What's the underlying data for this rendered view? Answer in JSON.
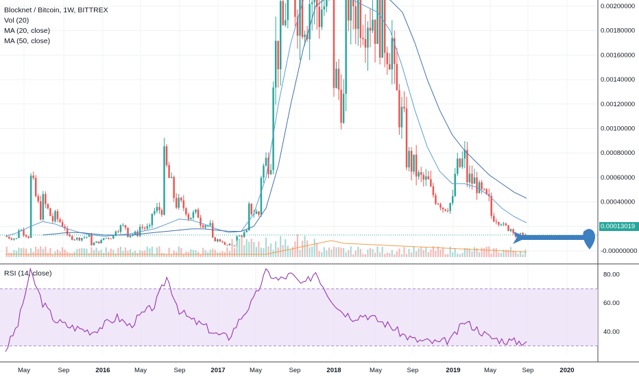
{
  "legend": {
    "symbol": "Blocknet / Bitcoin, 1W, BITTREX",
    "vol": "Vol (20)",
    "ma20": "MA (20, close)",
    "ma50": "MA (50, close)"
  },
  "rsi_legend": "RSI (14, close)",
  "last_price_label": "0.00013019",
  "colors": {
    "up": "#26a69a",
    "down": "#ef5350",
    "ma20": "#5b9cd6",
    "ma50": "#3f6fa8",
    "vol_ma": "#f39c4a",
    "rsi": "#8e24aa",
    "rsi_band": "#e9ddf7",
    "arrow": "#3d7fc0"
  },
  "chart_data": [
    {
      "type": "candlestick",
      "title": "Blocknet / Bitcoin, 1W, BITTREX",
      "y_ticks": [
        "0.00200000",
        "0.00180000",
        "0.00160000",
        "0.00140000",
        "0.00120000",
        "0.00100000",
        "0.00080000",
        "0.00060000",
        "0.00040000",
        "0.00020000",
        "-0.00000000"
      ],
      "y_tick_values": [
        0.002,
        0.0018,
        0.0016,
        0.0014,
        0.0012,
        0.001,
        0.0008,
        0.0006,
        0.0004,
        0.0002,
        0
      ],
      "ylim": [
        -5e-05,
        0.00205
      ],
      "last_price": 0.00013019,
      "x_ticks": [
        "May",
        "Sep",
        "2016",
        "May",
        "Sep",
        "2017",
        "May",
        "Sep",
        "2018",
        "May",
        "Sep",
        "2019",
        "May",
        "Sep",
        "2020"
      ],
      "x_ticks_bold": [
        false,
        false,
        true,
        false,
        false,
        true,
        false,
        false,
        true,
        false,
        false,
        true,
        false,
        false,
        true
      ],
      "close_path": [
        [
          0.00012,
          0.0001
        ],
        [
          0.0002,
          0.00012
        ],
        [
          0.00065,
          0.0003
        ],
        [
          0.00045,
          0.00025
        ],
        [
          0.0003,
          0.0002
        ],
        [
          0.00012,
          0.0001
        ],
        [
          0.0001,
          0.00012
        ],
        [
          5e-05,
          8e-05
        ],
        [
          0.0001,
          0.00012
        ],
        [
          0.00018,
          0.0002
        ],
        [
          0.00013,
          0.00014
        ],
        [
          0.0002,
          0.00018
        ],
        [
          0.0003,
          0.00035
        ],
        [
          0.0008,
          0.00045
        ],
        [
          0.0004,
          0.00035
        ],
        [
          0.00028,
          0.0003
        ],
        [
          0.00025,
          0.0002
        ],
        [
          0.0001,
          8e-05
        ],
        [
          4e-05,
          5e-05
        ],
        [
          0.0001,
          0.00015
        ],
        [
          0.00035,
          0.0003
        ],
        [
          0.0006,
          0.0008
        ],
        [
          0.0015,
          0.0018
        ],
        [
          0.002,
          0.0021
        ],
        [
          0.0021,
          0.002
        ],
        [
          0.0021,
          0.002
        ],
        [
          0.002,
          0.002
        ],
        [
          0.0015,
          0.0012
        ],
        [
          0.0021,
          0.00205
        ],
        [
          0.00205,
          0.002
        ],
        [
          0.002,
          0.0019
        ],
        [
          0.00185,
          0.0017
        ],
        [
          0.0014,
          0.001
        ],
        [
          0.0008,
          0.00065
        ],
        [
          0.0006,
          0.00055
        ],
        [
          0.0005,
          0.0004
        ],
        [
          0.00035,
          0.0004
        ],
        [
          0.0006,
          0.00075
        ],
        [
          0.0006,
          0.00055
        ],
        [
          0.0005,
          0.0004
        ],
        [
          0.0003,
          0.00025
        ],
        [
          0.0002,
          0.00018
        ],
        [
          0.00012,
          0.00013
        ]
      ],
      "ma20_path": [
        0.00012,
        0.00015,
        0.0002,
        0.00024,
        0.00022,
        0.00018,
        0.00015,
        0.00013,
        0.00012,
        0.00013,
        0.00014,
        0.00016,
        0.00018,
        0.00022,
        0.00026,
        0.00025,
        0.00022,
        0.00018,
        0.00015,
        0.00016,
        0.0003,
        0.0006,
        0.0012,
        0.0017,
        0.00205,
        0.00215,
        0.00215,
        0.0021,
        0.00205,
        0.002,
        0.00195,
        0.0018,
        0.0015,
        0.00115,
        0.00085,
        0.00065,
        0.00055,
        0.00055,
        0.00052,
        0.00045,
        0.00035,
        0.00028,
        0.00023
      ],
      "ma50_path": [
        null,
        null,
        null,
        0.00013,
        0.00014,
        0.00015,
        0.00015,
        0.00014,
        0.00013,
        0.00013,
        0.00013,
        0.00014,
        0.00015,
        0.00016,
        0.00017,
        0.00018,
        0.00018,
        0.00017,
        0.00016,
        0.00016,
        0.0002,
        0.00035,
        0.0007,
        0.0012,
        0.00165,
        0.002,
        0.00215,
        0.0022,
        0.0022,
        0.00215,
        0.0021,
        0.00205,
        0.00195,
        0.0017,
        0.0014,
        0.00115,
        0.00095,
        0.00082,
        0.00072,
        0.00062,
        0.00055,
        0.00048,
        0.00043
      ]
    },
    {
      "type": "line",
      "title": "RSI (14, close)",
      "y_ticks": [
        "80.00",
        "60.00",
        "40.00"
      ],
      "y_tick_values": [
        80,
        60,
        40
      ],
      "ylim": [
        25,
        85
      ],
      "band": [
        30,
        70
      ],
      "x": [
        0,
        1,
        2,
        3,
        4,
        5,
        6,
        7,
        8,
        9,
        10,
        11,
        12,
        13,
        14,
        15,
        16,
        17,
        18,
        19,
        20,
        21,
        22,
        23,
        24,
        25,
        26,
        27,
        28,
        29,
        30,
        31,
        32,
        33,
        34,
        35,
        36,
        37,
        38,
        39,
        40,
        41,
        42
      ],
      "values": [
        27,
        45,
        82,
        60,
        48,
        44,
        42,
        40,
        45,
        50,
        44,
        52,
        58,
        78,
        55,
        48,
        44,
        38,
        36,
        50,
        62,
        82,
        76,
        80,
        72,
        82,
        66,
        55,
        50,
        52,
        48,
        44,
        38,
        34,
        33,
        32,
        35,
        47,
        42,
        36,
        34,
        33,
        33
      ]
    }
  ]
}
